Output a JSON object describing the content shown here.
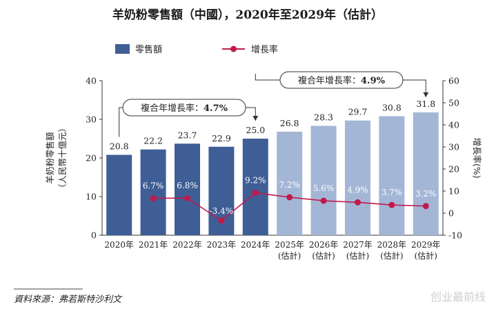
{
  "chart_data": {
    "type": "bar",
    "title": "羊奶粉零售額（中國），2020年至2029年（估計）",
    "categories": [
      [
        "2020年"
      ],
      [
        "2021年"
      ],
      [
        "2022年"
      ],
      [
        "2023年"
      ],
      [
        "2024年"
      ],
      [
        "2025年",
        "(估計)"
      ],
      [
        "2026年",
        "(估計)"
      ],
      [
        "2027年",
        "(估計)"
      ],
      [
        "2028年",
        "(估計)"
      ],
      [
        "2029年",
        "(估計)"
      ]
    ],
    "series": [
      {
        "name": "零售額",
        "type": "bar",
        "values": [
          20.8,
          22.2,
          23.7,
          22.9,
          25.0,
          26.8,
          28.3,
          29.7,
          30.8,
          31.8
        ],
        "labels": [
          "20.8",
          "22.2",
          "23.7",
          "22.9",
          "25.0",
          "26.8",
          "28.3",
          "29.7",
          "30.8",
          "31.8"
        ],
        "colors": [
          "#3f5e96",
          "#3f5e96",
          "#3f5e96",
          "#3f5e96",
          "#3f5e96",
          "#a3b6d6",
          "#a3b6d6",
          "#a3b6d6",
          "#a3b6d6",
          "#a3b6d6"
        ]
      },
      {
        "name": "增長率",
        "type": "line",
        "axis": "right",
        "color": "#c2194b",
        "values": [
          null,
          6.7,
          6.8,
          -3.4,
          9.2,
          7.2,
          5.6,
          4.9,
          3.7,
          3.2
        ],
        "labels": [
          "",
          "6.7%",
          "6.8%",
          "-3.4%",
          "9.2%",
          "7.2%",
          "5.6%",
          "4.9%",
          "3.7%",
          "3.2%"
        ]
      }
    ],
    "ylabel_left": [
      "羊奶粉零售額",
      "（人民幣十億元）"
    ],
    "ylabel_right": "增長率(%)",
    "ylim_left": [
      0,
      40
    ],
    "yticks_left": [
      "0",
      "10",
      "20",
      "30",
      "40"
    ],
    "ylim_right": [
      -10,
      60
    ],
    "yticks_right": [
      "-10",
      "0",
      "10",
      "20",
      "30",
      "40",
      "50",
      "60"
    ],
    "annotations": [
      {
        "label": "複合年增長率：",
        "value": "4.7%",
        "from": 0,
        "to": 4
      },
      {
        "label": "複合年增長率：",
        "value": "4.9%",
        "from": 4,
        "to": 9
      }
    ],
    "legend": "top-left",
    "grid": false
  },
  "source": "資料來源：弗若斯特沙利文",
  "watermark": "创业最前线",
  "colors": {
    "bar_historic": "#3f5e96",
    "bar_forecast": "#a3b6d6",
    "line": "#c2194b"
  }
}
